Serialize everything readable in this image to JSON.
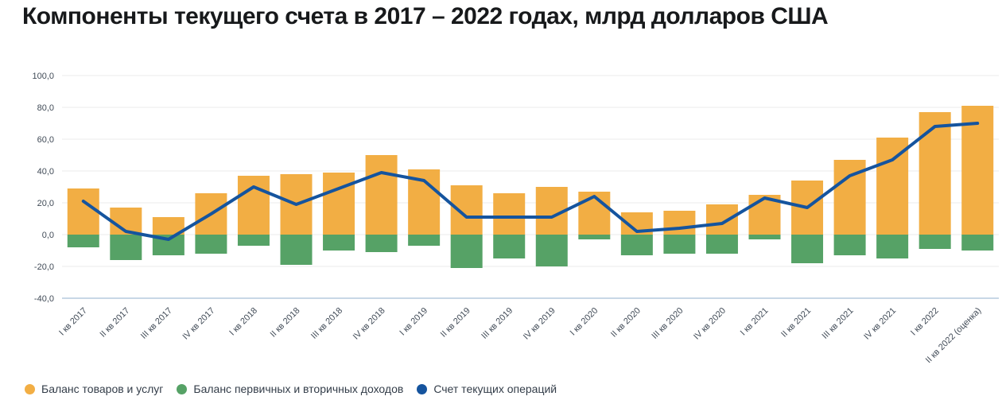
{
  "title": "Компоненты текущего счета в 2017 – 2022 годах, млрд долларов США",
  "colors": {
    "goods_services": "#F2AE44",
    "income_balance": "#56A266",
    "current_account": "#15549E",
    "grid": "#ebebeb",
    "axis_line": "#b5cade",
    "tick_text": "#414b57",
    "title_text": "#17191b",
    "legend_text": "#333d49",
    "background": "#ffffff"
  },
  "legend": [
    {
      "key": "goods_services",
      "label": "Баланс товаров и услуг",
      "color": "#F2AE44"
    },
    {
      "key": "income_balance",
      "label": "Баланс первичных и вторичных доходов",
      "color": "#56A266"
    },
    {
      "key": "current_account",
      "label": "Счет текущих операций",
      "color": "#15549E"
    }
  ],
  "chart_data": {
    "type": "bar",
    "subtype": "stacked-bars-with-line",
    "title": "Компоненты текущего счета в 2017 – 2022 годах, млрд долларов США",
    "xlabel": "",
    "ylabel": "млрд долларов США",
    "ylim": [
      -40,
      100
    ],
    "ytick_step": 20,
    "ytick_labels": [
      "-40,0",
      "-20,0",
      "0,0",
      "20,0",
      "40,0",
      "60,0",
      "80,0",
      "100,0"
    ],
    "grid": true,
    "legend_position": "bottom",
    "categories": [
      "I кв 2017",
      "II кв 2017",
      "III кв 2017",
      "IV кв 2017",
      "I кв 2018",
      "II кв 2018",
      "III кв 2018",
      "IV кв 2018",
      "I кв 2019",
      "II кв 2019",
      "III кв 2019",
      "IV кв 2019",
      "I кв 2020",
      "II кв 2020",
      "III кв 2020",
      "IV кв 2020",
      "I кв 2021",
      "II кв 2021",
      "III кв 2021",
      "IV кв 2021",
      "I кв 2022",
      "II кв 2022 (оценка)"
    ],
    "series": [
      {
        "key": "goods_services",
        "name": "Баланс товаров и услуг",
        "type": "bar",
        "color": "#F2AE44",
        "values": [
          29,
          17,
          11,
          26,
          37,
          38,
          39,
          50,
          41,
          31,
          26,
          30,
          27,
          14,
          15,
          19,
          25,
          34,
          47,
          61,
          77,
          81
        ]
      },
      {
        "key": "income_balance",
        "name": "Баланс первичных и вторичных доходов",
        "type": "bar",
        "color": "#56A266",
        "values": [
          -8,
          -16,
          -13,
          -12,
          -7,
          -19,
          -10,
          -11,
          -7,
          -21,
          -15,
          -20,
          -3,
          -13,
          -12,
          -12,
          -3,
          -18,
          -13,
          -15,
          -9,
          -10
        ]
      },
      {
        "key": "current_account",
        "name": "Счет текущих операций",
        "type": "line",
        "color": "#15549E",
        "values": [
          21,
          2,
          -3,
          13,
          30,
          19,
          29,
          39,
          34,
          11,
          11,
          11,
          24,
          2,
          4,
          7,
          23,
          17,
          37,
          47,
          68,
          70
        ]
      }
    ]
  }
}
